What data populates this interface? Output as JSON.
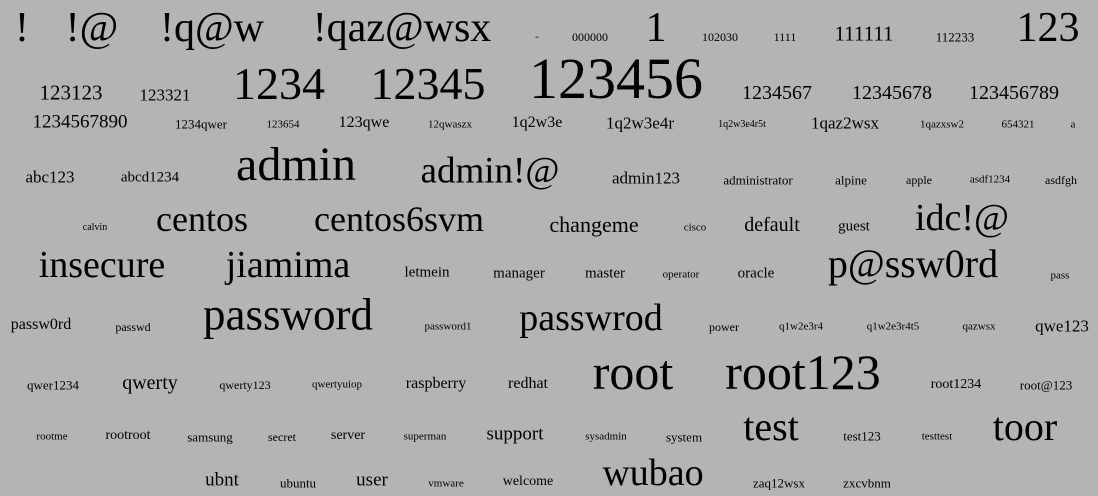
{
  "words": [
    "!",
    "!@",
    "!q@w",
    "!qaz@wsx",
    "-",
    "000000",
    "1",
    "102030",
    "1111",
    "111111",
    "112233",
    "123",
    "123123",
    "123321",
    "1234",
    "12345",
    "123456",
    "1234567",
    "12345678",
    "123456789",
    "1234567890",
    "1234qwer",
    "123654",
    "123qwe",
    "12qwaszx",
    "1q2w3e",
    "1q2w3e4r",
    "1q2w3e4r5t",
    "1qaz2wsx",
    "1qazxsw2",
    "654321",
    "a",
    "abc123",
    "abcd1234",
    "admin",
    "admin!@",
    "admin123",
    "administrator",
    "alpine",
    "apple",
    "asdf1234",
    "asdfgh",
    "calvin",
    "centos",
    "centos6svm",
    "changeme",
    "cisco",
    "default",
    "guest",
    "idc!@",
    "insecure",
    "jiamima",
    "letmein",
    "manager",
    "master",
    "operator",
    "oracle",
    "p@ssw0rd",
    "pass",
    "passw0rd",
    "passwd",
    "password",
    "password1",
    "passwrod",
    "power",
    "q1w2e3r4",
    "q1w2e3r4t5",
    "qazwsx",
    "qwe123",
    "qwer1234",
    "qwerty",
    "qwerty123",
    "qwertyuiop",
    "raspberry",
    "redhat",
    "root",
    "root123",
    "root1234",
    "root@123",
    "rootme",
    "rootroot",
    "samsung",
    "secret",
    "server",
    "superman",
    "support",
    "sysadmin",
    "system",
    "test",
    "test123",
    "testtest",
    "toor",
    "ubnt",
    "ubuntu",
    "user",
    "vmware",
    "welcome",
    "wubao",
    "zaq12wsx",
    "zxcvbnm"
  ]
}
